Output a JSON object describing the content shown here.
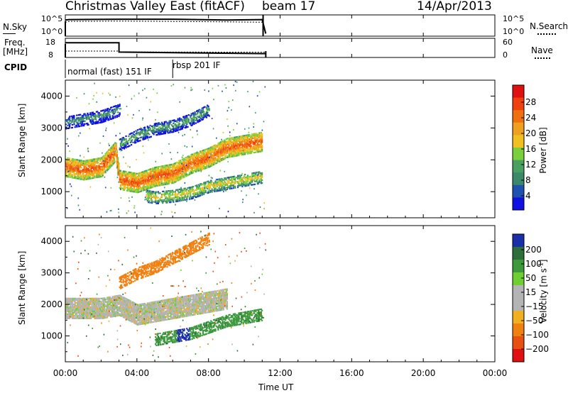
{
  "header": {
    "station": "Christmas Valley East (fitACF)",
    "beam": "beam 17",
    "date": "14/Apr/2013"
  },
  "labels": {
    "nsky": "N.Sky",
    "nsky_tick_top": "10^5",
    "nsky_tick_bottom": "10^0",
    "nsky_right_top": "10^5",
    "nsky_right_bottom": "10^0",
    "nsearch": "N.Search",
    "freq": "Freq.",
    "freq_unit": "[MHz]",
    "freq_tick_top": "18",
    "freq_tick_bottom": "8",
    "nave_tick_top": "60",
    "nave_tick_bottom": "0",
    "nave": "Nave",
    "cpid": "CPID",
    "cpid_seg1": "normal (fast) 151 IF",
    "cpid_seg2": "rbsp 201 IF",
    "power_title": "Power [dB]",
    "velocity_title": "Velocity [m s",
    "velocity_sup": "-1",
    "velocity_close": "]"
  },
  "chart_data": [
    {
      "type": "heatmap",
      "title": "Power",
      "xlabel": "Time UT",
      "ylabel": "Slant Range [km]",
      "x_ticks": [
        "00:00",
        "04:00",
        "08:00",
        "12:00",
        "16:00",
        "20:00",
        "00:00"
      ],
      "x_tick_hours": [
        0,
        4,
        8,
        12,
        16,
        20,
        24
      ],
      "xlim_hours": [
        0,
        24
      ],
      "y_ticks": [
        1000,
        2000,
        3000,
        4000
      ],
      "ylim_km": [
        180,
        4500
      ],
      "colorbar": {
        "label": "Power [dB]",
        "ticks": [
          4,
          8,
          12,
          16,
          20,
          24,
          28
        ],
        "colors": [
          "#1010e0",
          "#2050b0",
          "#3a8a6a",
          "#4aa060",
          "#7ccf3c",
          "#f0c020",
          "#f0a020",
          "#f07010",
          "#f04010",
          "#e01010"
        ]
      },
      "data_extent_hours": [
        0,
        11.2
      ],
      "bands": [
        {
          "name": "low",
          "t": [
            0,
            1,
            2,
            2.8,
            3,
            4,
            5,
            6,
            7,
            8,
            9,
            10,
            11
          ],
          "km": [
            1800,
            1700,
            1800,
            2300,
            1400,
            1300,
            1500,
            1600,
            1900,
            2100,
            2400,
            2500,
            2600
          ],
          "power_db": 25
        },
        {
          "name": "lower",
          "t": [
            4.5,
            5,
            6,
            7,
            8,
            9,
            10,
            11
          ],
          "km": [
            900,
            850,
            900,
            1000,
            1200,
            1300,
            1400,
            1500
          ],
          "power_db": 18
        },
        {
          "name": "mid",
          "t": [
            3,
            4,
            5,
            6,
            7,
            8
          ],
          "km": [
            2500,
            2800,
            3000,
            3100,
            3300,
            3600
          ],
          "power_db": 12
        },
        {
          "name": "high",
          "t": [
            0,
            1,
            2,
            3
          ],
          "km": [
            3200,
            3300,
            3400,
            3600
          ],
          "power_db": 10
        }
      ]
    },
    {
      "type": "heatmap",
      "title": "Velocity",
      "xlabel": "Time UT",
      "ylabel": "Slant Range [km]",
      "x_ticks": [
        "00:00",
        "04:00",
        "08:00",
        "12:00",
        "16:00",
        "20:00",
        "00:00"
      ],
      "x_tick_hours": [
        0,
        4,
        8,
        12,
        16,
        20,
        24
      ],
      "xlim_hours": [
        0,
        24
      ],
      "y_ticks": [
        1000,
        2000,
        3000,
        4000
      ],
      "ylim_km": [
        180,
        4500
      ],
      "colorbar": {
        "label": "Velocity [m s-1]",
        "ticks": [
          "200",
          "100",
          "50",
          "15",
          "-15",
          "-50",
          "-100",
          "-200"
        ],
        "colors": [
          "#1a2ea8",
          "#2e6e3a",
          "#3c9a3c",
          "#6fcf30",
          "#b4b4b4",
          "#b4b4b4",
          "#f0b020",
          "#f08010",
          "#e85010",
          "#e01010"
        ]
      },
      "data_extent_hours": [
        0,
        11.2
      ],
      "bands": [
        {
          "name": "ground",
          "t": [
            0,
            2,
            3,
            4,
            6,
            8,
            9
          ],
          "km": [
            1900,
            1900,
            2000,
            1700,
            1900,
            2100,
            2200
          ],
          "velocity": 0
        },
        {
          "name": "toward",
          "t": [
            5,
            6,
            7,
            8,
            9,
            10,
            11
          ],
          "km": [
            900,
            1000,
            1100,
            1300,
            1500,
            1600,
            1700
          ],
          "velocity": 60
        },
        {
          "name": "away",
          "t": [
            3,
            4,
            5,
            6,
            7,
            8
          ],
          "km": [
            2700,
            3000,
            3200,
            3500,
            3800,
            4100
          ],
          "velocity": -50
        }
      ]
    },
    {
      "type": "line",
      "title": "N.Sky / N.Search",
      "x_hours": [
        0,
        0.2,
        3,
        6,
        9,
        11,
        11.2
      ],
      "nsky_log": [
        4.2,
        4.3,
        4.4,
        4.4,
        4.2,
        4.3,
        0.5
      ],
      "nsearch_log": [
        3.6,
        3.8,
        3.9,
        3.8,
        3.7,
        3.6,
        0.3
      ]
    },
    {
      "type": "line",
      "title": "Freq / Nave",
      "x_hours": [
        0,
        3,
        3,
        11.2
      ],
      "freq_mhz": [
        17,
        17,
        11,
        10
      ],
      "nave": [
        20,
        20,
        17,
        16
      ]
    }
  ]
}
